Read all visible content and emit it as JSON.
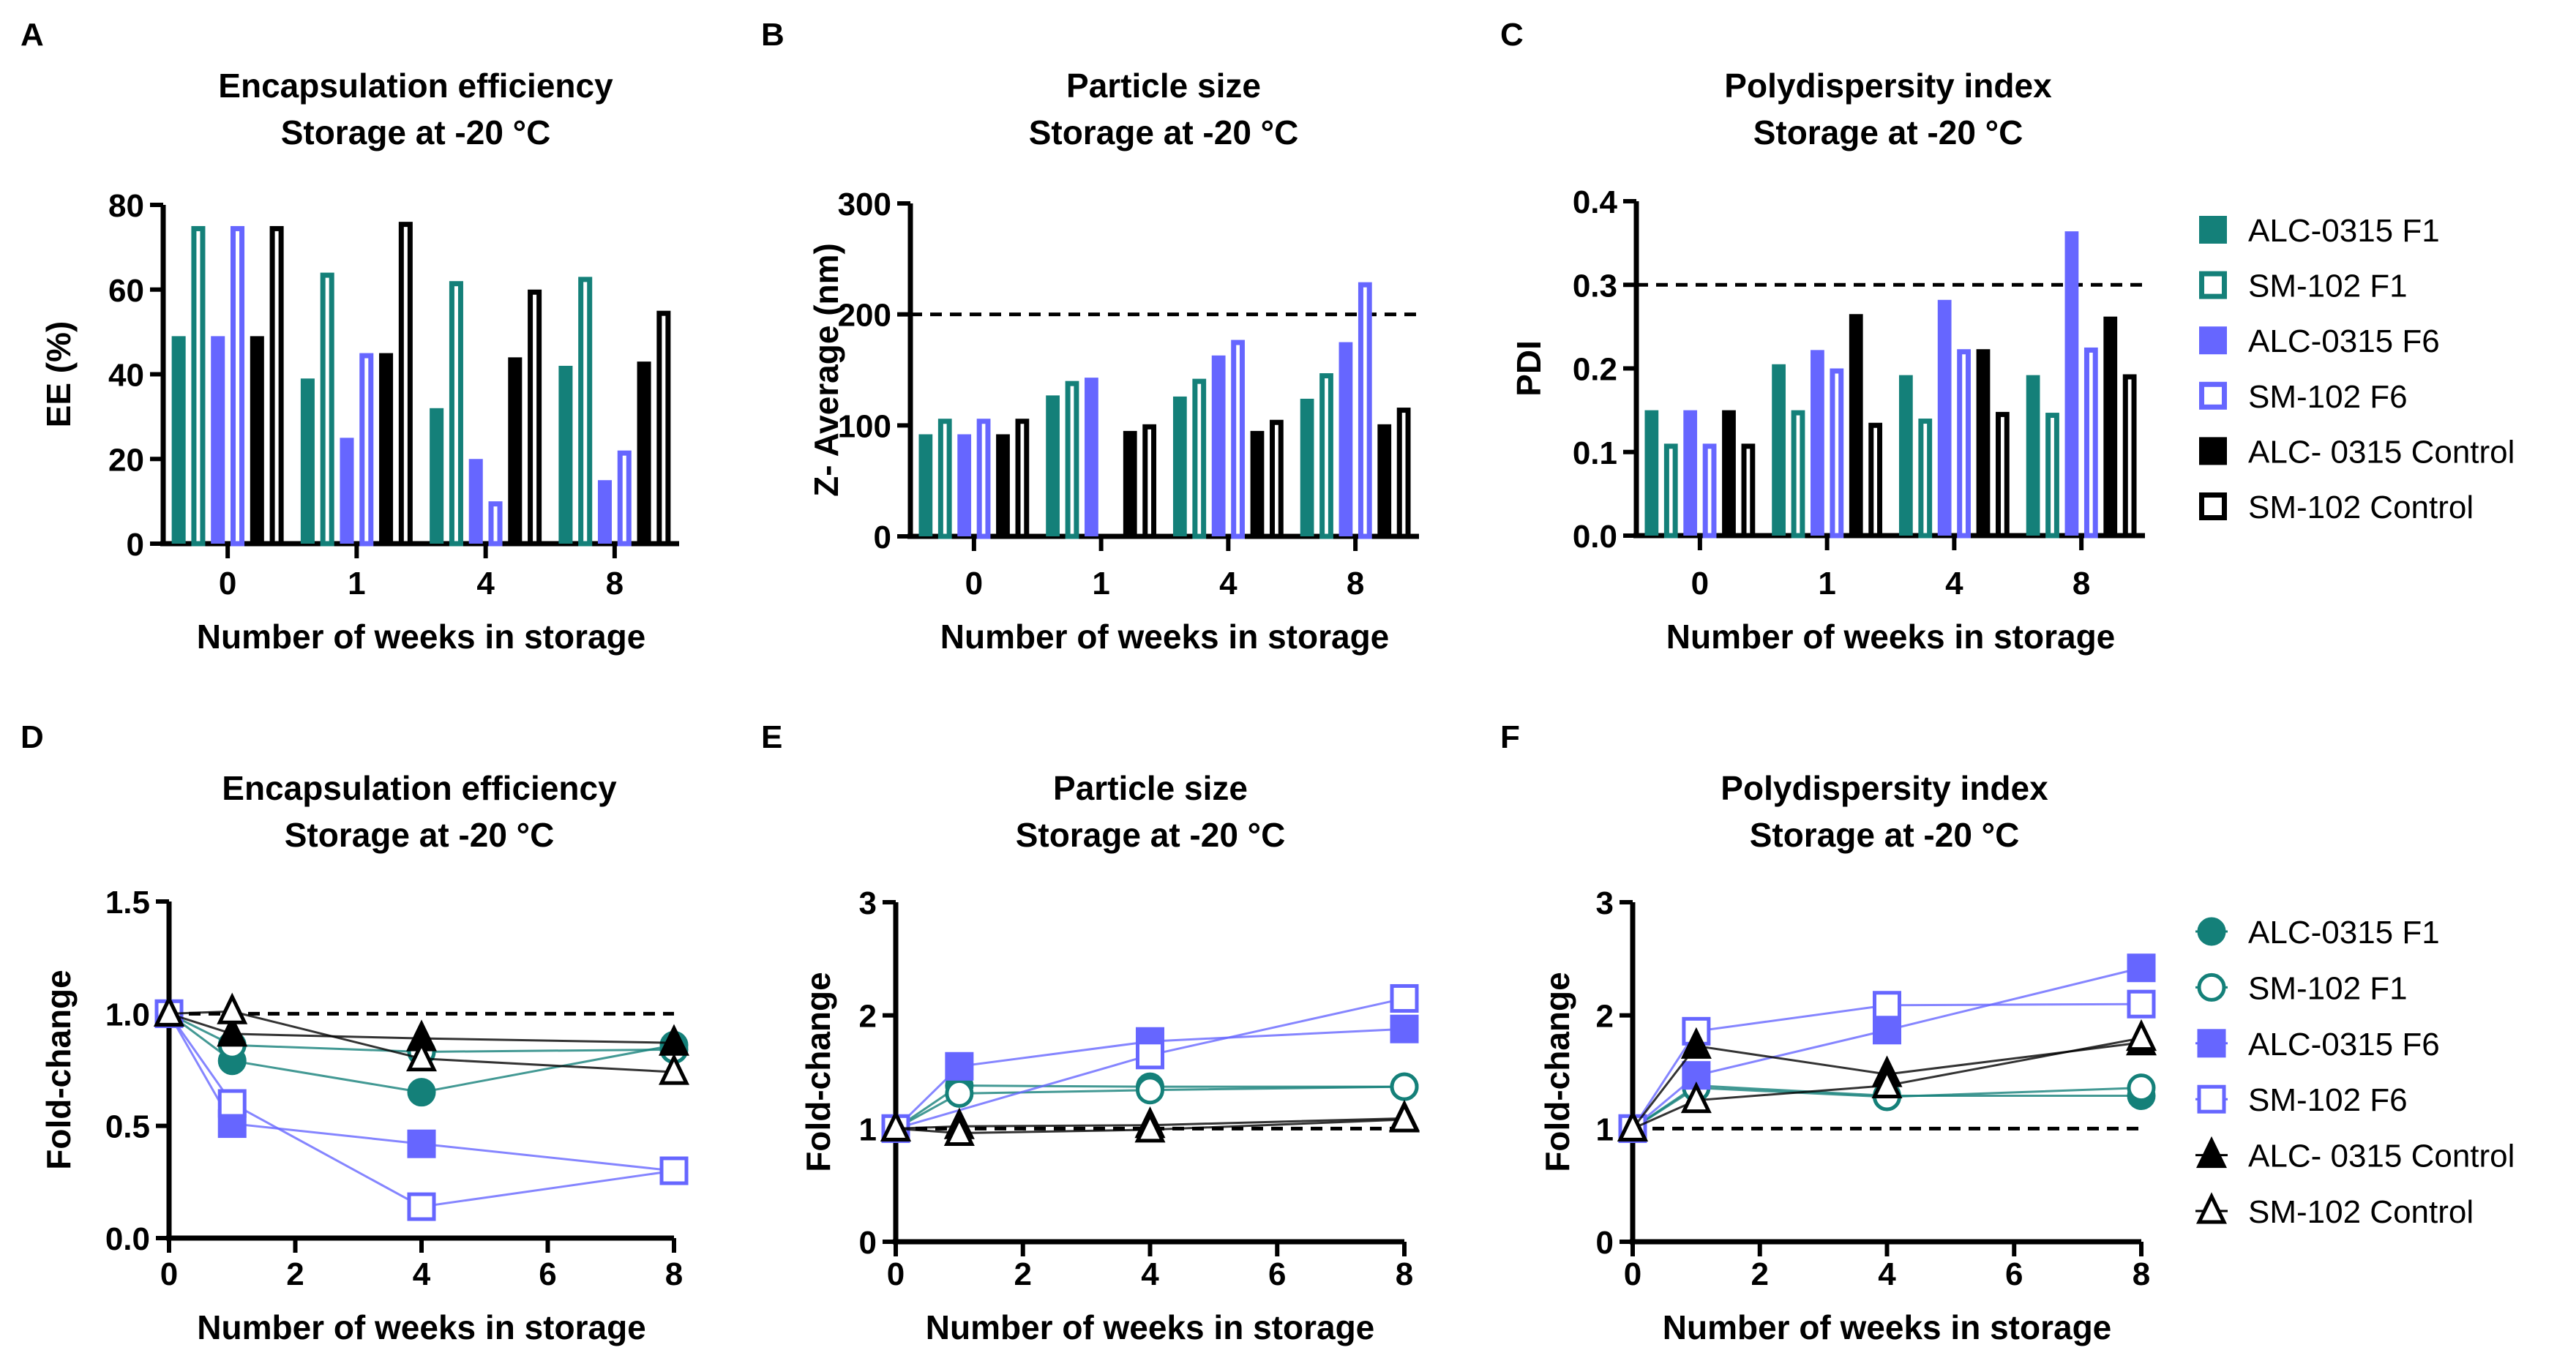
{
  "colors": {
    "teal": "#148079",
    "blue": "#6666FF",
    "black": "#000000"
  },
  "legend_names": [
    "ALC-0315 F1",
    "SM-102 F1",
    "ALC-0315 F6",
    "SM-102 F6",
    "ALC- 0315 Control",
    "SM-102 Control"
  ],
  "chart_data": [
    {
      "panel": "A",
      "type": "bar",
      "title": [
        "Encapsulation efficiency",
        "Storage at -20 °C"
      ],
      "xlabel": "Number of weeks in storage",
      "ylabel": "EE (%)",
      "categories": [
        "0",
        "1",
        "4",
        "8"
      ],
      "ylim": [
        0,
        80
      ],
      "yticks": [
        "0",
        "20",
        "40",
        "60",
        "80"
      ],
      "series": [
        {
          "name": "ALC-0315 F1",
          "values": [
            49,
            39,
            32,
            42
          ]
        },
        {
          "name": "SM-102 F1",
          "values": [
            75,
            64,
            62,
            63
          ]
        },
        {
          "name": "ALC-0315 F6",
          "values": [
            49,
            25,
            20,
            15
          ]
        },
        {
          "name": "SM-102 F6",
          "values": [
            75,
            45,
            10,
            22
          ]
        },
        {
          "name": "ALC- 0315 Control",
          "values": [
            49,
            45,
            44,
            43
          ]
        },
        {
          "name": "SM-102 Control",
          "values": [
            75,
            76,
            60,
            55
          ]
        }
      ]
    },
    {
      "panel": "B",
      "type": "bar",
      "title": [
        "Particle size",
        "Storage at -20 °C"
      ],
      "xlabel": "Number of weeks in storage",
      "ylabel": "Z- Average (nm)",
      "categories": [
        "0",
        "1",
        "4",
        "8"
      ],
      "ylim": [
        0,
        300
      ],
      "yticks": [
        "0",
        "100",
        "200",
        "300"
      ],
      "reference_line": 200,
      "series": [
        {
          "name": "ALC-0315 F1",
          "values": [
            92,
            127,
            126,
            124
          ]
        },
        {
          "name": "SM-102 F1",
          "values": [
            106,
            140,
            142,
            147
          ]
        },
        {
          "name": "ALC-0315 F6",
          "values": [
            92,
            143,
            163,
            175
          ]
        },
        {
          "name": "SM-102 F6",
          "values": [
            106,
            null,
            177,
            229
          ]
        },
        {
          "name": "ALC- 0315 Control",
          "values": [
            92,
            95,
            95,
            101
          ]
        },
        {
          "name": "SM-102 Control",
          "values": [
            106,
            101,
            105,
            116
          ]
        }
      ]
    },
    {
      "panel": "C",
      "type": "bar",
      "title": [
        "Polydispersity index",
        "Storage at -20 °C"
      ],
      "xlabel": "Number of weeks in storage",
      "ylabel": "PDI",
      "categories": [
        "0",
        "1",
        "4",
        "8"
      ],
      "ylim": [
        0,
        0.4
      ],
      "yticks": [
        "0.0",
        "0.1",
        "0.2",
        "0.3",
        "0.4"
      ],
      "reference_line": 0.3,
      "legend": "right",
      "series": [
        {
          "name": "ALC-0315 F1",
          "values": [
            0.15,
            0.205,
            0.192,
            0.192
          ]
        },
        {
          "name": "SM-102 F1",
          "values": [
            0.11,
            0.15,
            0.14,
            0.147
          ]
        },
        {
          "name": "ALC-0315 F6",
          "values": [
            0.15,
            0.222,
            0.282,
            0.364
          ]
        },
        {
          "name": "SM-102 F6",
          "values": [
            0.11,
            0.2,
            0.223,
            0.225
          ]
        },
        {
          "name": "ALC- 0315 Control",
          "values": [
            0.15,
            0.265,
            0.223,
            0.262
          ]
        },
        {
          "name": "SM-102 Control",
          "values": [
            0.11,
            0.135,
            0.148,
            0.193
          ]
        }
      ]
    },
    {
      "panel": "D",
      "type": "line",
      "title": [
        "Encapsulation efficiency",
        "Storage at -20 °C"
      ],
      "xlabel": "Number of weeks in storage",
      "ylabel": "Fold-change",
      "x": [
        0,
        1,
        4,
        8
      ],
      "xlim": [
        0,
        8
      ],
      "xticks": [
        "0",
        "2",
        "4",
        "6",
        "8"
      ],
      "ylim": [
        0,
        1.5
      ],
      "yticks": [
        "0.0",
        "0.5",
        "1.0",
        "1.5"
      ],
      "reference_line": 1,
      "series": [
        {
          "name": "ALC-0315 F1",
          "values": [
            1,
            0.79,
            0.65,
            0.86
          ]
        },
        {
          "name": "SM-102 F1",
          "values": [
            1,
            0.86,
            0.83,
            0.84
          ]
        },
        {
          "name": "ALC-0315 F6",
          "values": [
            1,
            0.51,
            0.42,
            0.3
          ]
        },
        {
          "name": "SM-102 F6",
          "values": [
            1,
            0.6,
            0.14,
            0.3
          ]
        },
        {
          "name": "ALC- 0315 Control",
          "values": [
            1,
            0.91,
            0.89,
            0.87
          ]
        },
        {
          "name": "SM-102 Control",
          "values": [
            1,
            1.01,
            0.8,
            0.74
          ]
        }
      ]
    },
    {
      "panel": "E",
      "type": "line",
      "title": [
        "Particle size",
        "Storage at -20 °C"
      ],
      "xlabel": "Number of weeks in storage",
      "ylabel": "Fold-change",
      "x": [
        0,
        1,
        4,
        8
      ],
      "xlim": [
        0,
        8
      ],
      "xticks": [
        "0",
        "2",
        "4",
        "6",
        "8"
      ],
      "ylim": [
        0,
        3
      ],
      "yticks": [
        "0",
        "1",
        "2",
        "3"
      ],
      "reference_line": 1,
      "series": [
        {
          "name": "ALC-0315 F1",
          "values": [
            1,
            1.38,
            1.37,
            1.37
          ]
        },
        {
          "name": "SM-102 F1",
          "values": [
            1,
            1.31,
            1.34,
            1.37
          ]
        },
        {
          "name": "ALC-0315 F6",
          "values": [
            1,
            1.55,
            1.77,
            1.88
          ]
        },
        {
          "name": "SM-102 F6",
          "values": [
            1,
            null,
            1.65,
            2.15
          ]
        },
        {
          "name": "ALC- 0315 Control",
          "values": [
            1,
            1.02,
            1.03,
            1.09
          ]
        },
        {
          "name": "SM-102 Control",
          "values": [
            1,
            0.96,
            0.99,
            1.08
          ]
        }
      ]
    },
    {
      "panel": "F",
      "type": "line",
      "title": [
        "Polydispersity index",
        "Storage at -20 °C"
      ],
      "xlabel": "Number of weeks in storage",
      "ylabel": "Fold-change",
      "x": [
        0,
        1,
        4,
        8
      ],
      "xlim": [
        0,
        8
      ],
      "xticks": [
        "0",
        "2",
        "4",
        "6",
        "8"
      ],
      "ylim": [
        0,
        3
      ],
      "yticks": [
        "0",
        "1",
        "2",
        "3"
      ],
      "reference_line": 1,
      "legend": "right",
      "series": [
        {
          "name": "ALC-0315 F1",
          "values": [
            1,
            1.38,
            1.29,
            1.29
          ]
        },
        {
          "name": "SM-102 F1",
          "values": [
            1,
            1.36,
            1.28,
            1.36
          ]
        },
        {
          "name": "ALC-0315 F6",
          "values": [
            1,
            1.47,
            1.87,
            2.42
          ]
        },
        {
          "name": "SM-102 F6",
          "values": [
            1,
            1.86,
            2.09,
            2.1
          ]
        },
        {
          "name": "ALC- 0315 Control",
          "values": [
            1,
            1.73,
            1.48,
            1.76
          ]
        },
        {
          "name": "SM-102 Control",
          "values": [
            1,
            1.25,
            1.38,
            1.8
          ]
        }
      ]
    }
  ]
}
